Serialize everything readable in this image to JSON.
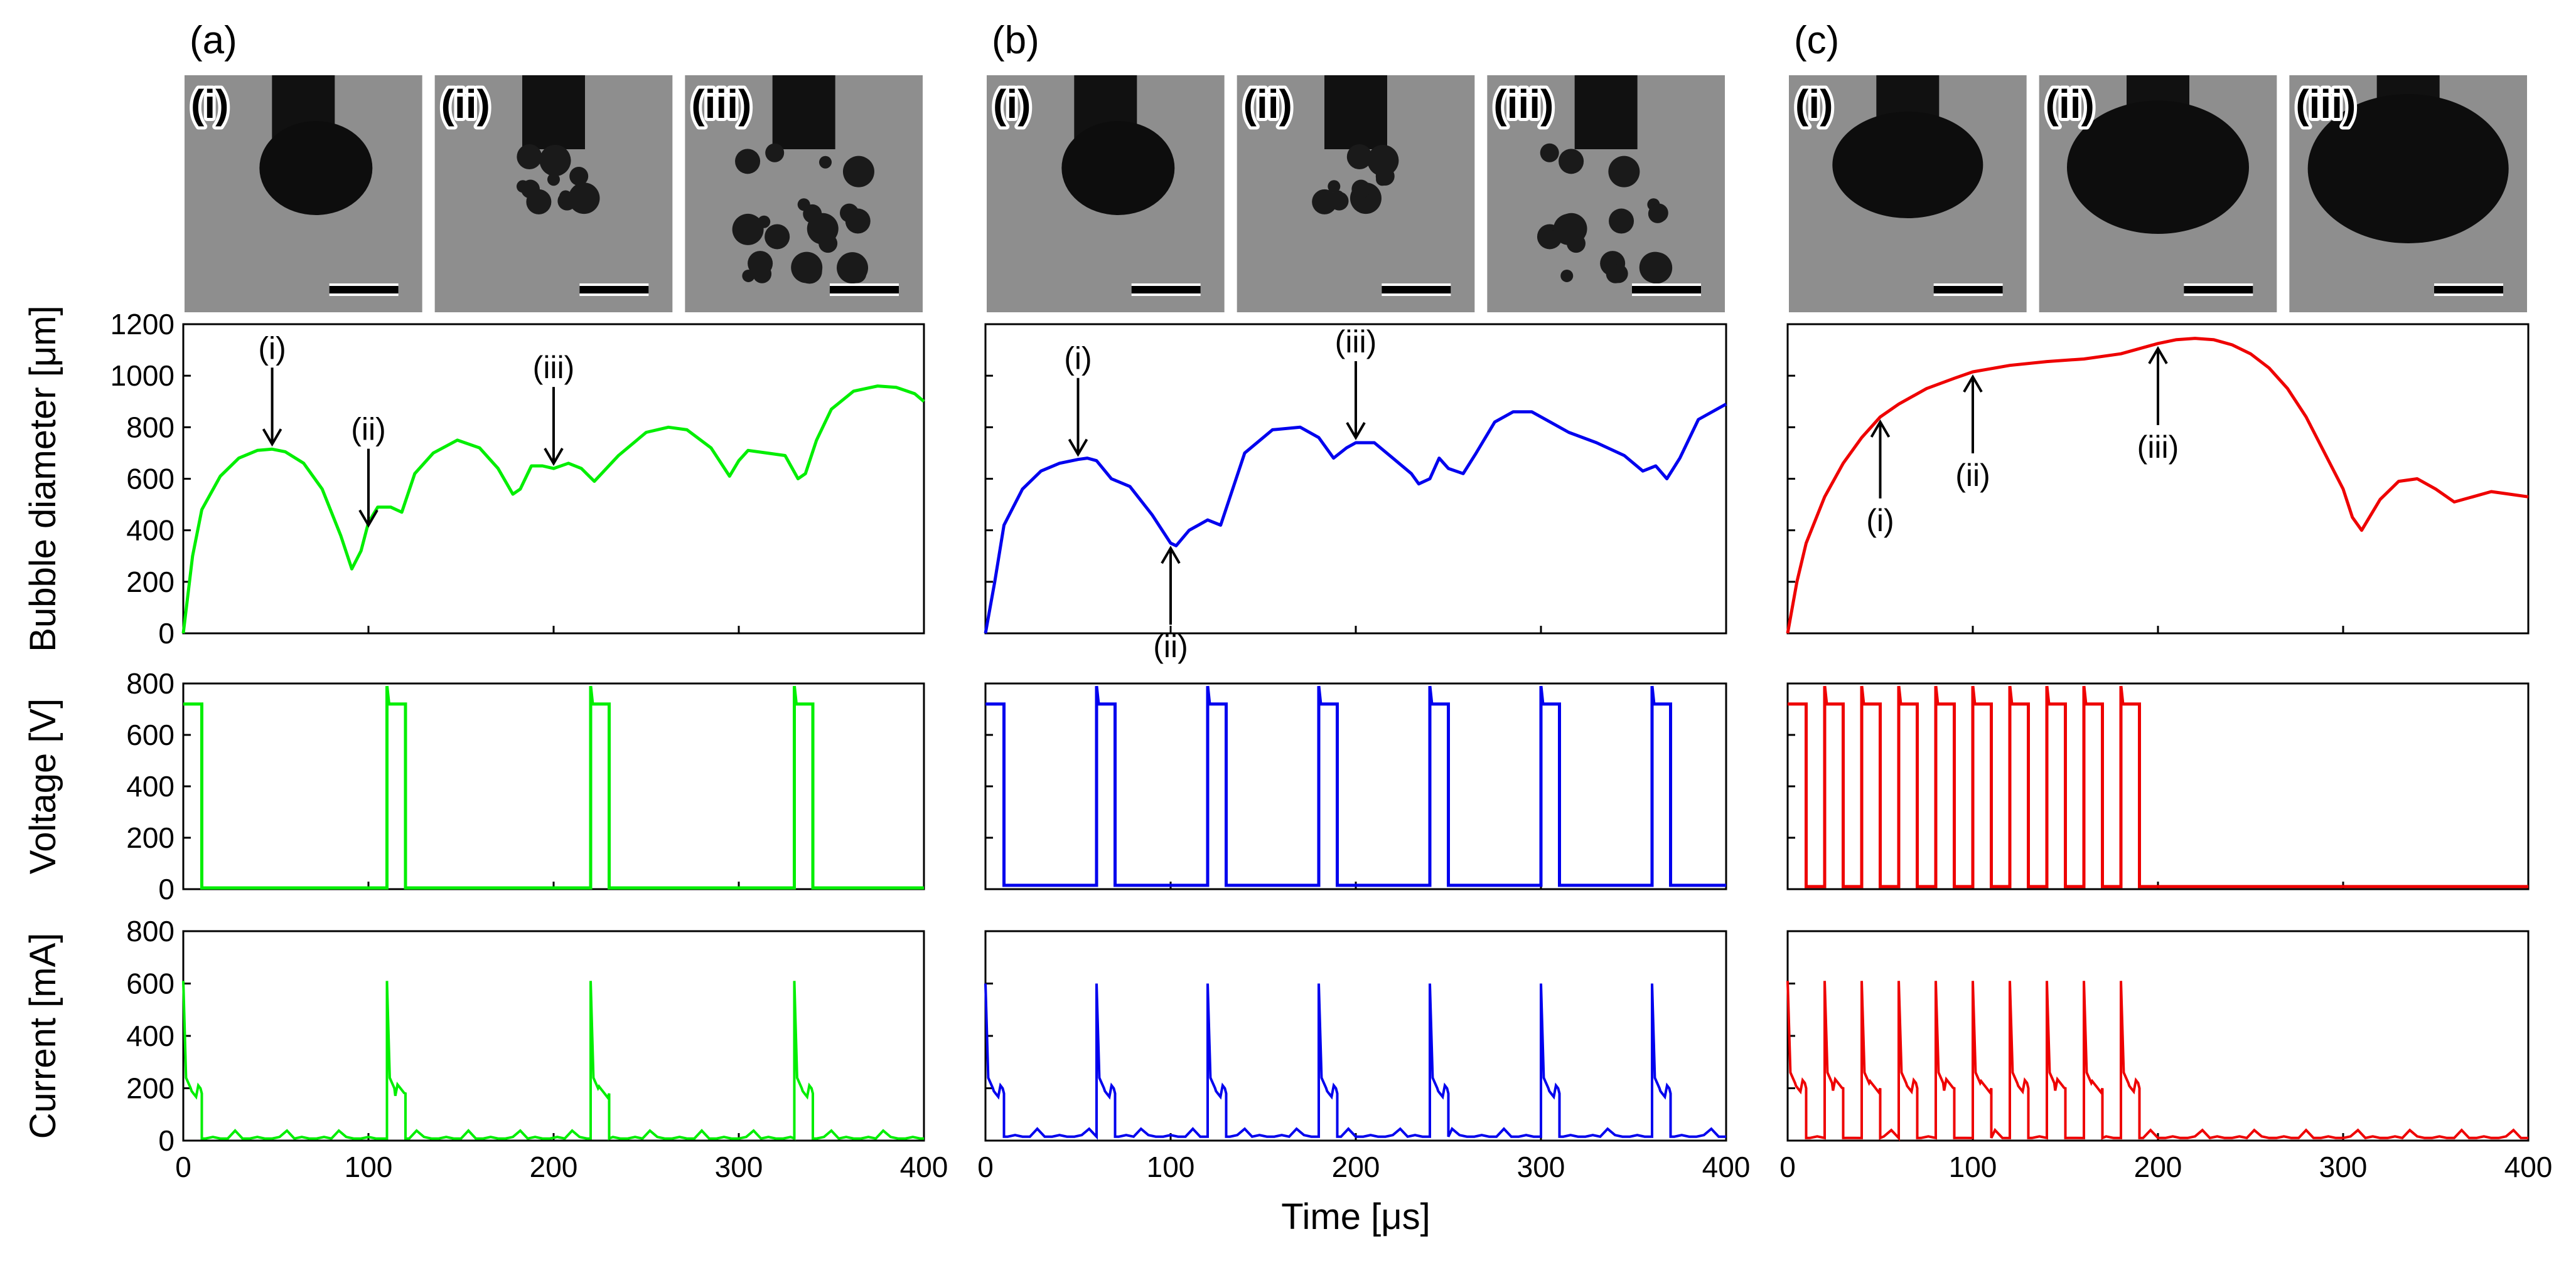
{
  "panel_labels": [
    "(a)",
    "(b)",
    "(c)"
  ],
  "photo_labels": [
    "(i)",
    "(ii)",
    "(iii)"
  ],
  "colors": {
    "a": "#00ee00",
    "b": "#0000ee",
    "c": "#ee0000"
  },
  "chart_data": [
    {
      "panel": "(a)",
      "type": "line",
      "ylabel": "Bubble diameter [μm]",
      "ylim": [
        0,
        1200
      ],
      "yticks": [
        0,
        200,
        400,
        600,
        800,
        1000,
        1200
      ],
      "xlim": [
        0,
        400
      ],
      "xticks": [
        0,
        100,
        200,
        300,
        400
      ],
      "x": [
        0,
        5,
        10,
        20,
        30,
        40,
        48,
        55,
        65,
        75,
        85,
        91,
        96,
        100,
        105,
        112,
        118,
        125,
        135,
        148,
        160,
        170,
        178,
        182,
        188,
        194,
        200,
        208,
        215,
        222,
        235,
        250,
        262,
        272,
        285,
        295,
        300,
        305,
        315,
        325,
        332,
        336,
        342,
        350,
        362,
        375,
        385,
        395,
        400
      ],
      "y": [
        0,
        300,
        480,
        610,
        680,
        710,
        715,
        705,
        660,
        560,
        380,
        250,
        320,
        430,
        490,
        490,
        470,
        620,
        700,
        750,
        720,
        640,
        540,
        560,
        650,
        650,
        640,
        660,
        640,
        590,
        690,
        780,
        800,
        790,
        720,
        610,
        670,
        710,
        700,
        690,
        600,
        620,
        750,
        870,
        940,
        960,
        955,
        930,
        900
      ],
      "annotations": [
        {
          "text": "(i)",
          "x": 48,
          "y": 715,
          "dir": "down"
        },
        {
          "text": "(ii)",
          "x": 100,
          "y": 400,
          "dir": "down"
        },
        {
          "text": "(iii)",
          "x": 200,
          "y": 640,
          "dir": "down"
        }
      ]
    },
    {
      "panel": "(b)",
      "type": "line",
      "ylabel": "",
      "ylim": [
        0,
        1200
      ],
      "xlim": [
        0,
        400
      ],
      "xticks": [
        0,
        100,
        200,
        300,
        400
      ],
      "x": [
        0,
        5,
        10,
        20,
        30,
        40,
        50,
        55,
        60,
        68,
        78,
        90,
        100,
        103,
        110,
        120,
        127,
        140,
        155,
        170,
        180,
        188,
        195,
        200,
        210,
        220,
        230,
        234,
        240,
        245,
        250,
        258,
        265,
        275,
        285,
        295,
        305,
        315,
        330,
        345,
        355,
        362,
        368,
        375,
        385,
        395,
        400
      ],
      "y": [
        0,
        200,
        420,
        560,
        630,
        660,
        675,
        680,
        670,
        600,
        570,
        460,
        350,
        340,
        400,
        440,
        420,
        700,
        790,
        800,
        760,
        680,
        720,
        740,
        740,
        680,
        620,
        580,
        600,
        680,
        640,
        620,
        700,
        820,
        860,
        860,
        820,
        780,
        740,
        690,
        630,
        650,
        600,
        680,
        830,
        870,
        890
      ],
      "annotations": [
        {
          "text": "(i)",
          "x": 50,
          "y": 675,
          "dir": "down"
        },
        {
          "text": "(ii)",
          "x": 100,
          "y": 350,
          "dir": "up"
        },
        {
          "text": "(iii)",
          "x": 200,
          "y": 740,
          "dir": "down"
        }
      ]
    },
    {
      "panel": "(c)",
      "type": "line",
      "ylabel": "",
      "ylim": [
        0,
        1200
      ],
      "xlim": [
        0,
        400
      ],
      "xticks": [
        0,
        100,
        200,
        300,
        400
      ],
      "x": [
        0,
        5,
        10,
        20,
        30,
        40,
        50,
        60,
        75,
        90,
        100,
        120,
        140,
        160,
        180,
        200,
        210,
        220,
        230,
        240,
        250,
        260,
        270,
        280,
        290,
        300,
        305,
        310,
        320,
        330,
        340,
        350,
        360,
        370,
        380,
        390,
        400
      ],
      "y": [
        0,
        200,
        350,
        530,
        660,
        760,
        840,
        890,
        950,
        990,
        1015,
        1040,
        1055,
        1065,
        1085,
        1125,
        1140,
        1145,
        1140,
        1120,
        1085,
        1030,
        950,
        840,
        700,
        560,
        450,
        400,
        520,
        590,
        600,
        560,
        510,
        530,
        550,
        540,
        530
      ],
      "annotations": [
        {
          "text": "(i)",
          "x": 50,
          "y": 840,
          "dir": "up"
        },
        {
          "text": "(ii)",
          "x": 100,
          "y": 1015,
          "dir": "up"
        },
        {
          "text": "(iii)",
          "x": 200,
          "y": 1125,
          "dir": "up"
        }
      ]
    },
    {
      "panel": "(a)",
      "type": "line",
      "ylabel": "Voltage [V]",
      "ylim": [
        0,
        800
      ],
      "yticks": [
        0,
        200,
        400,
        600,
        800
      ],
      "xlim": [
        0,
        400
      ],
      "pulse_starts": [
        0,
        110,
        220,
        330
      ],
      "pulse_width": 10,
      "high": 720,
      "low": 5,
      "spike": 790
    },
    {
      "panel": "(b)",
      "type": "line",
      "ylabel": "",
      "ylim": [
        0,
        800
      ],
      "xlim": [
        0,
        400
      ],
      "pulse_starts": [
        0,
        60,
        120,
        180,
        240,
        300,
        360
      ],
      "pulse_width": 10,
      "high": 720,
      "low": 15,
      "spike": 790
    },
    {
      "panel": "(c)",
      "type": "line",
      "ylabel": "",
      "ylim": [
        0,
        800
      ],
      "xlim": [
        0,
        400
      ],
      "pulse_starts": [
        0,
        20,
        40,
        60,
        80,
        100,
        120,
        140,
        160,
        180
      ],
      "pulse_width": 10,
      "high": 720,
      "low": 10,
      "spike": 790
    },
    {
      "panel": "(a)",
      "type": "line",
      "ylabel": "Current [mA]",
      "ylim": [
        0,
        800
      ],
      "yticks": [
        0,
        200,
        400,
        600,
        800
      ],
      "xlim": [
        0,
        400
      ],
      "xticks": [
        0,
        100,
        200,
        300,
        400
      ],
      "pulse_starts": [
        0,
        110,
        220,
        330
      ],
      "pulse_width": 10,
      "peak": 610,
      "plateau": 180,
      "low": 8
    },
    {
      "panel": "(b)",
      "type": "line",
      "ylabel": "",
      "xlabel": "Time [μs]",
      "ylim": [
        0,
        800
      ],
      "xlim": [
        0,
        400
      ],
      "xticks": [
        0,
        100,
        200,
        300,
        400
      ],
      "pulse_starts": [
        0,
        60,
        120,
        180,
        240,
        300,
        360
      ],
      "pulse_width": 10,
      "peak": 600,
      "plateau": 180,
      "low": 15
    },
    {
      "panel": "(c)",
      "type": "line",
      "ylabel": "",
      "ylim": [
        0,
        800
      ],
      "xlim": [
        0,
        400
      ],
      "xticks": [
        0,
        100,
        200,
        300,
        400
      ],
      "pulse_starts": [
        0,
        20,
        40,
        60,
        80,
        100,
        120,
        140,
        160,
        180
      ],
      "pulse_width": 10,
      "peak": 610,
      "plateau": 200,
      "low": 10
    }
  ]
}
